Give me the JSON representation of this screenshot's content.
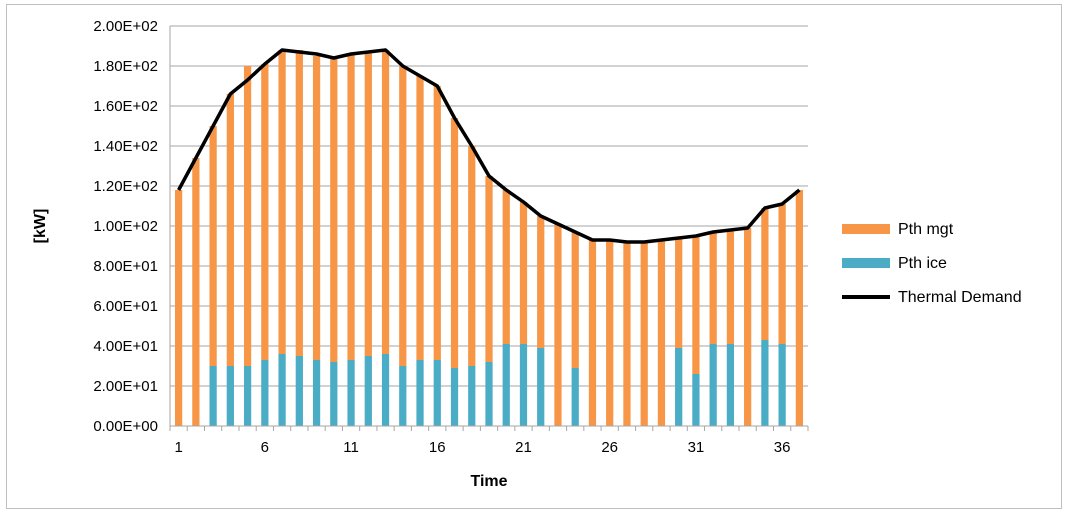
{
  "chart_data": {
    "type": "bar",
    "stacked": true,
    "title": "",
    "xlabel": "Time",
    "ylabel": "[kW]",
    "ylim": [
      0,
      200
    ],
    "grid": true,
    "legend_position": "right",
    "x_tick_labels": [
      "1",
      "6",
      "11",
      "16",
      "21",
      "26",
      "31",
      "36"
    ],
    "y_tick_labels": [
      "0.00E+00",
      "2.00E+01",
      "4.00E+01",
      "6.00E+01",
      "8.00E+01",
      "1.00E+02",
      "1.20E+02",
      "1.40E+02",
      "1.60E+02",
      "1.80E+02",
      "2.00E+02"
    ],
    "categories": [
      1,
      2,
      3,
      4,
      5,
      6,
      7,
      8,
      9,
      10,
      11,
      12,
      13,
      14,
      15,
      16,
      17,
      18,
      19,
      20,
      21,
      22,
      23,
      24,
      25,
      26,
      27,
      28,
      29,
      30,
      31,
      32,
      33,
      34,
      35,
      36,
      37
    ],
    "series": [
      {
        "name": "Pth ice",
        "color": "#4bacc6",
        "values": [
          0,
          0,
          30,
          30,
          30,
          33,
          36,
          35,
          33,
          32,
          33,
          35,
          36,
          30,
          33,
          33,
          29,
          30,
          32,
          41,
          41,
          39,
          0,
          29,
          0,
          0,
          0,
          0,
          0,
          39,
          26,
          41,
          41,
          0,
          43,
          41,
          0
        ]
      },
      {
        "name": "Pth mgt",
        "color": "#f79646",
        "values": [
          118,
          134,
          120,
          136,
          150,
          148,
          152,
          153,
          152,
          152,
          153,
          152,
          152,
          150,
          142,
          137,
          125,
          110,
          93,
          77,
          71,
          66,
          101,
          68,
          93,
          93,
          92,
          92,
          93,
          55,
          69,
          56,
          57,
          99,
          66,
          70,
          118
        ]
      },
      {
        "name": "Thermal Demand",
        "type": "line",
        "color": "#000000",
        "values": [
          118,
          134,
          150,
          166,
          173,
          181,
          188,
          187,
          186,
          184,
          186,
          187,
          188,
          180,
          175,
          170,
          154,
          140,
          125,
          118,
          112,
          105,
          101,
          97,
          93,
          93,
          92,
          92,
          93,
          94,
          95,
          97,
          98,
          99,
          109,
          111,
          118
        ]
      }
    ]
  }
}
